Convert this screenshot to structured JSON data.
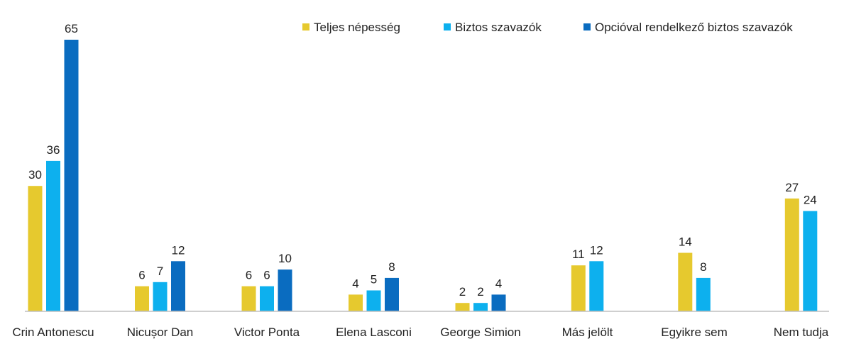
{
  "chart_data": {
    "type": "bar",
    "title": "",
    "xlabel": "",
    "ylabel": "",
    "grid": false,
    "legend_position": "top-right",
    "ylim": [
      0,
      65
    ],
    "categories": [
      "Crin Antonescu",
      "Nicușor Dan",
      "Victor Ponta",
      "Elena Lasconi",
      "George Simion",
      "Más jelölt",
      "Egyikre sem",
      "Nem tudja"
    ],
    "series": [
      {
        "name": "Teljes népesség",
        "color": "#E6C92E",
        "values": [
          30,
          6,
          6,
          4,
          2,
          11,
          14,
          27
        ]
      },
      {
        "name": "Biztos szavazók",
        "color": "#0DB0EE",
        "values": [
          36,
          7,
          6,
          5,
          2,
          12,
          8,
          24
        ]
      },
      {
        "name": "Opcióval rendelkező biztos szavazók",
        "color": "#0A6CC0",
        "values": [
          65,
          12,
          10,
          8,
          4,
          null,
          null,
          null
        ]
      }
    ]
  }
}
